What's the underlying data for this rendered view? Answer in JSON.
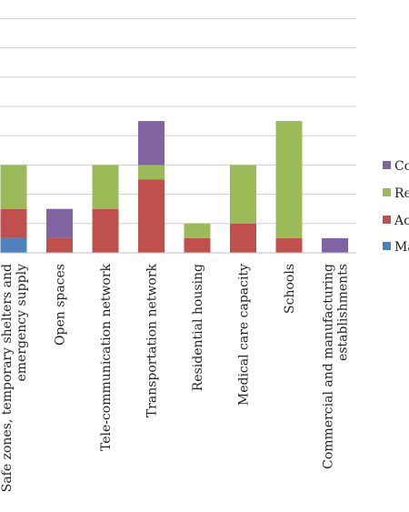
{
  "chart_data": {
    "type": "bar",
    "stacked": true,
    "categories": [
      "Safe zones, temporary shelters and emergency supply",
      "Open spaces",
      "Tele-communication network",
      "Transportation network",
      "Residential housing",
      "Medical care capacity",
      "Schools",
      "Commercial and manufacturing establishments"
    ],
    "series": [
      {
        "name": "Ma",
        "color": "#4f81bd",
        "values": [
          1,
          0,
          0,
          0,
          0,
          0,
          0,
          0
        ]
      },
      {
        "name": "Ac",
        "color": "#c0504d",
        "values": [
          2,
          1,
          3,
          5,
          1,
          2,
          1,
          0
        ]
      },
      {
        "name": "Re",
        "color": "#9bbb59",
        "values": [
          3,
          0,
          3,
          1,
          1,
          4,
          8,
          0
        ]
      },
      {
        "name": "Co",
        "color": "#8064a2",
        "values": [
          0,
          2,
          0,
          3,
          0,
          0,
          0,
          1
        ]
      }
    ],
    "ylim": [
      0,
      16
    ],
    "grid": true,
    "legend": "right"
  }
}
